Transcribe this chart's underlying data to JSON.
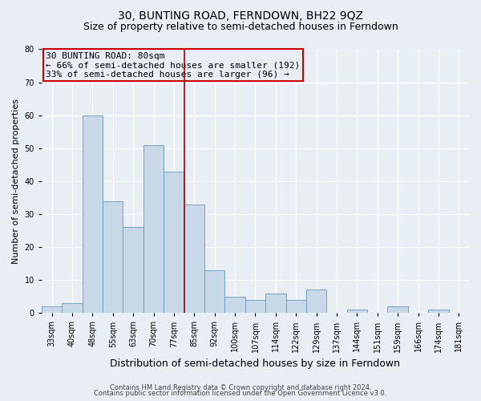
{
  "title": "30, BUNTING ROAD, FERNDOWN, BH22 9QZ",
  "subtitle": "Size of property relative to semi-detached houses in Ferndown",
  "xlabel": "Distribution of semi-detached houses by size in Ferndown",
  "ylabel": "Number of semi-detached properties",
  "bar_labels": [
    "33sqm",
    "40sqm",
    "48sqm",
    "55sqm",
    "63sqm",
    "70sqm",
    "77sqm",
    "85sqm",
    "92sqm",
    "100sqm",
    "107sqm",
    "114sqm",
    "122sqm",
    "129sqm",
    "137sqm",
    "144sqm",
    "151sqm",
    "159sqm",
    "166sqm",
    "174sqm",
    "181sqm"
  ],
  "bar_values": [
    2,
    3,
    60,
    34,
    26,
    51,
    43,
    33,
    13,
    5,
    4,
    6,
    4,
    7,
    0,
    1,
    0,
    2,
    0,
    1,
    0
  ],
  "bar_color": "#c8d8e8",
  "bar_edge_color": "#6699bb",
  "ylim": [
    0,
    80
  ],
  "yticks": [
    0,
    10,
    20,
    30,
    40,
    50,
    60,
    70,
    80
  ],
  "vline_color": "#aa0000",
  "annotation_line1": "30 BUNTING ROAD: 80sqm",
  "annotation_line2": "← 66% of semi-detached houses are smaller (192)",
  "annotation_line3": "33% of semi-detached houses are larger (96) →",
  "box_edge_color": "#cc0000",
  "footer1": "Contains HM Land Registry data © Crown copyright and database right 2024.",
  "footer2": "Contains public sector information licensed under the Open Government Licence v3.0.",
  "bg_color": "#e8eef4",
  "grid_color": "#ffffff",
  "title_fontsize": 10,
  "subtitle_fontsize": 9,
  "xlabel_fontsize": 9,
  "ylabel_fontsize": 8,
  "tick_fontsize": 7,
  "ann_fontsize": 8,
  "footer_fontsize": 6
}
